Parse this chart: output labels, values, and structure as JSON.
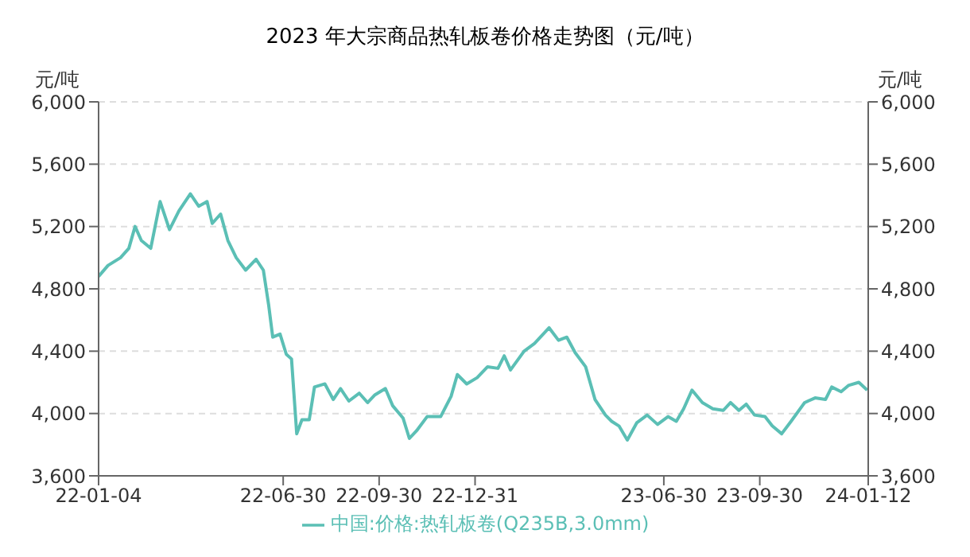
{
  "chart_data": {
    "type": "line",
    "title": "2023 年大宗商品热轧板卷价格走势图（元/吨）",
    "ylabel": "元/吨",
    "y2label": "元/吨",
    "x": [
      "2022-01-04",
      "2022-01-13",
      "2022-01-25",
      "2022-02-02",
      "2022-02-08",
      "2022-02-14",
      "2022-02-23",
      "2022-03-04",
      "2022-03-13",
      "2022-03-22",
      "2022-04-02",
      "2022-04-10",
      "2022-04-18",
      "2022-04-23",
      "2022-05-01",
      "2022-05-08",
      "2022-05-16",
      "2022-05-25",
      "2022-06-04",
      "2022-06-11",
      "2022-06-16",
      "2022-06-20",
      "2022-06-27",
      "2022-07-03",
      "2022-07-08",
      "2022-07-13",
      "2022-07-18",
      "2022-07-25",
      "2022-07-30",
      "2022-08-09",
      "2022-08-17",
      "2022-08-24",
      "2022-09-01",
      "2022-09-11",
      "2022-09-19",
      "2022-09-26",
      "2022-10-06",
      "2022-10-13",
      "2022-10-23",
      "2022-10-29",
      "2022-11-05",
      "2022-11-15",
      "2022-11-28",
      "2022-12-08",
      "2022-12-14",
      "2022-12-23",
      "2023-01-02",
      "2023-01-12",
      "2023-01-22",
      "2023-01-28",
      "2023-02-03",
      "2023-02-16",
      "2023-02-26",
      "2023-03-12",
      "2023-03-21",
      "2023-03-29",
      "2023-04-06",
      "2023-04-16",
      "2023-04-25",
      "2023-05-05",
      "2023-05-11",
      "2023-05-18",
      "2023-05-26",
      "2023-06-04",
      "2023-06-14",
      "2023-06-24",
      "2023-07-04",
      "2023-07-12",
      "2023-07-19",
      "2023-07-27",
      "2023-08-06",
      "2023-08-16",
      "2023-08-26",
      "2023-09-02",
      "2023-09-10",
      "2023-09-17",
      "2023-09-25",
      "2023-10-05",
      "2023-10-12",
      "2023-10-21",
      "2023-10-30",
      "2023-11-12",
      "2023-11-22",
      "2023-12-02",
      "2023-12-08",
      "2023-12-17",
      "2023-12-24",
      "2024-01-03",
      "2024-01-11"
    ],
    "series": [
      {
        "name": "中国:价格:热轧板卷(Q235B,3.0mm)",
        "color": "#5bbfb5",
        "values": [
          4880,
          4950,
          5000,
          5060,
          5200,
          5110,
          5060,
          5360,
          5180,
          5300,
          5410,
          5330,
          5360,
          5220,
          5280,
          5110,
          5000,
          4920,
          4990,
          4920,
          4700,
          4490,
          4510,
          4380,
          4350,
          3870,
          3960,
          3960,
          4170,
          4190,
          4090,
          4160,
          4080,
          4130,
          4070,
          4120,
          4160,
          4050,
          3970,
          3840,
          3890,
          3980,
          3980,
          4110,
          4250,
          4190,
          4230,
          4300,
          4290,
          4370,
          4280,
          4400,
          4450,
          4550,
          4470,
          4490,
          4390,
          4300,
          4090,
          3990,
          3950,
          3920,
          3830,
          3940,
          3990,
          3930,
          3980,
          3950,
          4030,
          4150,
          4070,
          4030,
          4020,
          4070,
          4020,
          4060,
          3990,
          3980,
          3920,
          3870,
          3950,
          4070,
          4100,
          4090,
          4170,
          4140,
          4180,
          4200,
          4150
        ]
      }
    ],
    "xlim": [
      "2022-01-04",
      "2024-01-12"
    ],
    "xticks": [
      {
        "value": "2022-01-04",
        "label": "22-01-04"
      },
      {
        "value": "2022-06-30",
        "label": "22-06-30"
      },
      {
        "value": "2022-09-30",
        "label": "22-09-30"
      },
      {
        "value": "2022-12-31",
        "label": "22-12-31"
      },
      {
        "value": "2023-06-30",
        "label": "23-06-30"
      },
      {
        "value": "2023-09-30",
        "label": "23-09-30"
      },
      {
        "value": "2024-01-12",
        "label": "24-01-12"
      }
    ],
    "ylim": [
      3600,
      6000
    ],
    "yticks": [
      {
        "value": 3600,
        "label": "3,600"
      },
      {
        "value": 4000,
        "label": "4,000"
      },
      {
        "value": 4400,
        "label": "4,400"
      },
      {
        "value": 4800,
        "label": "4,800"
      },
      {
        "value": 5200,
        "label": "5,200"
      },
      {
        "value": 5600,
        "label": "5,600"
      },
      {
        "value": 6000,
        "label": "6,000"
      }
    ],
    "y2lim": [
      3600,
      6000
    ],
    "y2ticks": [
      {
        "value": 3600,
        "label": "3,600"
      },
      {
        "value": 4000,
        "label": "4,000"
      },
      {
        "value": 4400,
        "label": "4,400"
      },
      {
        "value": 4800,
        "label": "4,800"
      },
      {
        "value": 5200,
        "label": "5,200"
      },
      {
        "value": 5600,
        "label": "5,600"
      },
      {
        "value": 6000,
        "label": "6,000"
      }
    ],
    "grid": "y",
    "legend": "bottom",
    "marker": "none",
    "line_style": "solid"
  }
}
